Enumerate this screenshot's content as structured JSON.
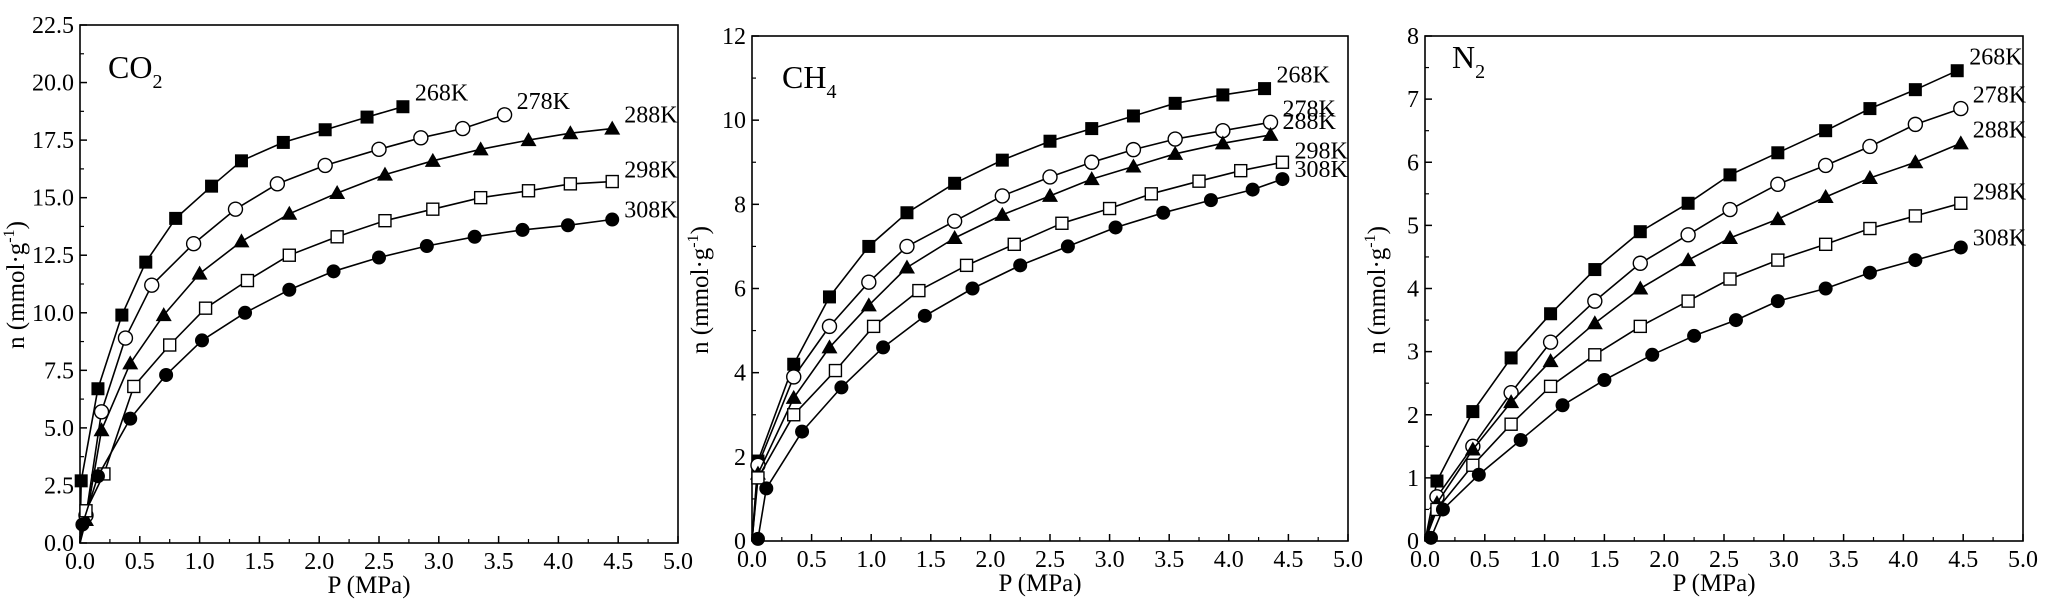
{
  "chart_data": [
    {
      "type": "scatter",
      "title": "CO",
      "title_sub": "2",
      "xlabel": "P (MPa)",
      "ylabel": "n (mmol·g",
      "ylabel_sup": "-1",
      "ylabel_close": ")",
      "xlim": [
        0,
        5
      ],
      "ylim": [
        0,
        22.5
      ],
      "xticks": [
        "0.0",
        "0.5",
        "1.0",
        "1.5",
        "2.0",
        "2.5",
        "3.0",
        "3.5",
        "4.0",
        "4.5",
        "5.0"
      ],
      "yticks": [
        "0.0",
        "2.5",
        "5.0",
        "7.5",
        "10.0",
        "12.5",
        "15.0",
        "17.5",
        "20.0",
        "22.5"
      ],
      "fit_lines": true,
      "series": [
        {
          "name": "268K",
          "marker": "filled-square",
          "x": [
            0.01,
            0.15,
            0.35,
            0.55,
            0.8,
            1.1,
            1.35,
            1.7,
            2.05,
            2.4,
            2.7
          ],
          "y": [
            2.7,
            6.7,
            9.9,
            12.2,
            14.1,
            15.5,
            16.6,
            17.4,
            17.95,
            18.5,
            18.95
          ]
        },
        {
          "name": "278K",
          "marker": "open-circle",
          "x": [
            0.05,
            0.18,
            0.38,
            0.6,
            0.95,
            1.3,
            1.65,
            2.05,
            2.5,
            2.85,
            3.2,
            3.55
          ],
          "y": [
            1.2,
            5.7,
            8.9,
            11.2,
            13.0,
            14.5,
            15.6,
            16.4,
            17.1,
            17.6,
            18.0,
            18.6
          ]
        },
        {
          "name": "288K",
          "marker": "filled-triangle",
          "x": [
            0.05,
            0.18,
            0.42,
            0.7,
            1.0,
            1.35,
            1.75,
            2.15,
            2.55,
            2.95,
            3.35,
            3.75,
            4.1,
            4.45
          ],
          "y": [
            1.0,
            4.9,
            7.8,
            9.9,
            11.7,
            13.1,
            14.3,
            15.2,
            16.0,
            16.6,
            17.1,
            17.5,
            17.8,
            18.0
          ]
        },
        {
          "name": "298K",
          "marker": "open-square",
          "x": [
            0.05,
            0.2,
            0.45,
            0.75,
            1.05,
            1.4,
            1.75,
            2.15,
            2.55,
            2.95,
            3.35,
            3.75,
            4.1,
            4.45
          ],
          "y": [
            1.4,
            3.0,
            6.8,
            8.6,
            10.2,
            11.4,
            12.5,
            13.3,
            14.0,
            14.5,
            15.0,
            15.3,
            15.6,
            15.7
          ]
        },
        {
          "name": "308K",
          "marker": "filled-circle",
          "x": [
            0.02,
            0.15,
            0.42,
            0.72,
            1.02,
            1.38,
            1.75,
            2.12,
            2.5,
            2.9,
            3.3,
            3.7,
            4.08,
            4.45
          ],
          "y": [
            0.8,
            2.9,
            5.4,
            7.3,
            8.8,
            10.0,
            11.0,
            11.8,
            12.4,
            12.9,
            13.3,
            13.6,
            13.8,
            14.05
          ]
        }
      ]
    },
    {
      "type": "scatter",
      "title": "CH",
      "title_sub": "4",
      "xlabel": "P (MPa)",
      "ylabel": "n (mmol·g",
      "ylabel_sup": "-1",
      "ylabel_close": ")",
      "xlim": [
        0,
        5
      ],
      "ylim": [
        0,
        12
      ],
      "xticks": [
        "0.0",
        "0.5",
        "1.0",
        "1.5",
        "2.0",
        "2.5",
        "3.0",
        "3.5",
        "4.0",
        "4.5",
        "5.0"
      ],
      "yticks": [
        "0",
        "2",
        "4",
        "6",
        "8",
        "10",
        "12"
      ],
      "fit_lines": true,
      "series": [
        {
          "name": "268K",
          "marker": "filled-square",
          "x": [
            0.05,
            0.35,
            0.65,
            0.98,
            1.3,
            1.7,
            2.1,
            2.5,
            2.85,
            3.2,
            3.55,
            3.95,
            4.3
          ],
          "y": [
            1.9,
            4.2,
            5.8,
            7.0,
            7.8,
            8.5,
            9.05,
            9.5,
            9.8,
            10.1,
            10.4,
            10.6,
            10.75
          ]
        },
        {
          "name": "278K",
          "marker": "open-circle",
          "x": [
            0.05,
            0.35,
            0.65,
            0.98,
            1.3,
            1.7,
            2.1,
            2.5,
            2.85,
            3.2,
            3.55,
            3.95,
            4.35
          ],
          "y": [
            1.8,
            3.9,
            5.1,
            6.15,
            7.0,
            7.6,
            8.2,
            8.65,
            9.0,
            9.3,
            9.55,
            9.75,
            9.95
          ]
        },
        {
          "name": "288K",
          "marker": "filled-triangle",
          "x": [
            0.05,
            0.35,
            0.65,
            0.98,
            1.3,
            1.7,
            2.1,
            2.5,
            2.85,
            3.2,
            3.55,
            3.95,
            4.35
          ],
          "y": [
            1.6,
            3.4,
            4.6,
            5.6,
            6.5,
            7.2,
            7.75,
            8.2,
            8.6,
            8.9,
            9.2,
            9.45,
            9.65
          ]
        },
        {
          "name": "298K",
          "marker": "open-square",
          "x": [
            0.05,
            0.35,
            0.7,
            1.02,
            1.4,
            1.8,
            2.2,
            2.6,
            3.0,
            3.35,
            3.75,
            4.1,
            4.45
          ],
          "y": [
            1.5,
            3.0,
            4.05,
            5.1,
            5.95,
            6.55,
            7.05,
            7.55,
            7.9,
            8.25,
            8.55,
            8.8,
            9.0
          ]
        },
        {
          "name": "308K",
          "marker": "filled-circle",
          "x": [
            0.05,
            0.12,
            0.42,
            0.75,
            1.1,
            1.45,
            1.85,
            2.25,
            2.65,
            3.05,
            3.45,
            3.85,
            4.2,
            4.45
          ],
          "y": [
            0.05,
            1.25,
            2.6,
            3.65,
            4.6,
            5.35,
            6.0,
            6.55,
            7.0,
            7.45,
            7.8,
            8.1,
            8.35,
            8.6
          ]
        }
      ]
    },
    {
      "type": "scatter",
      "title": "N",
      "title_sub": "2",
      "xlabel": "P (MPa)",
      "ylabel": "n (mmol·g",
      "ylabel_sup": "-1",
      "ylabel_close": ")",
      "xlim": [
        0,
        5
      ],
      "ylim": [
        0,
        8
      ],
      "xticks": [
        "0.0",
        "0.5",
        "1.0",
        "1.5",
        "2.0",
        "2.5",
        "3.0",
        "3.5",
        "4.0",
        "4.5",
        "5.0"
      ],
      "yticks": [
        "0",
        "1",
        "2",
        "3",
        "4",
        "5",
        "6",
        "7",
        "8"
      ],
      "fit_lines": true,
      "series": [
        {
          "name": "268K",
          "marker": "filled-square",
          "x": [
            0.1,
            0.4,
            0.72,
            1.05,
            1.42,
            1.8,
            2.2,
            2.55,
            2.95,
            3.35,
            3.72,
            4.1,
            4.45
          ],
          "y": [
            0.95,
            2.05,
            2.9,
            3.6,
            4.3,
            4.9,
            5.35,
            5.8,
            6.15,
            6.5,
            6.85,
            7.15,
            7.45
          ]
        },
        {
          "name": "278K",
          "marker": "open-circle",
          "x": [
            0.1,
            0.4,
            0.72,
            1.05,
            1.42,
            1.8,
            2.2,
            2.55,
            2.95,
            3.35,
            3.72,
            4.1,
            4.48
          ],
          "y": [
            0.7,
            1.5,
            2.35,
            3.15,
            3.8,
            4.4,
            4.85,
            5.25,
            5.65,
            5.95,
            6.25,
            6.6,
            6.85
          ]
        },
        {
          "name": "288K",
          "marker": "filled-triangle",
          "x": [
            0.1,
            0.4,
            0.72,
            1.05,
            1.42,
            1.8,
            2.2,
            2.55,
            2.95,
            3.35,
            3.72,
            4.1,
            4.48
          ],
          "y": [
            0.6,
            1.45,
            2.2,
            2.85,
            3.45,
            4.0,
            4.45,
            4.8,
            5.1,
            5.45,
            5.75,
            6.0,
            6.3
          ]
        },
        {
          "name": "298K",
          "marker": "open-square",
          "x": [
            0.1,
            0.4,
            0.72,
            1.05,
            1.42,
            1.8,
            2.2,
            2.55,
            2.95,
            3.35,
            3.72,
            4.1,
            4.48
          ],
          "y": [
            0.5,
            1.2,
            1.85,
            2.45,
            2.95,
            3.4,
            3.8,
            4.15,
            4.45,
            4.7,
            4.95,
            5.15,
            5.35
          ]
        },
        {
          "name": "308K",
          "marker": "filled-circle",
          "x": [
            0.05,
            0.15,
            0.45,
            0.8,
            1.15,
            1.5,
            1.9,
            2.25,
            2.6,
            2.95,
            3.35,
            3.72,
            4.1,
            4.48
          ],
          "y": [
            0.05,
            0.5,
            1.05,
            1.6,
            2.15,
            2.55,
            2.95,
            3.25,
            3.5,
            3.8,
            4.0,
            4.25,
            4.45,
            4.65
          ]
        }
      ]
    }
  ]
}
